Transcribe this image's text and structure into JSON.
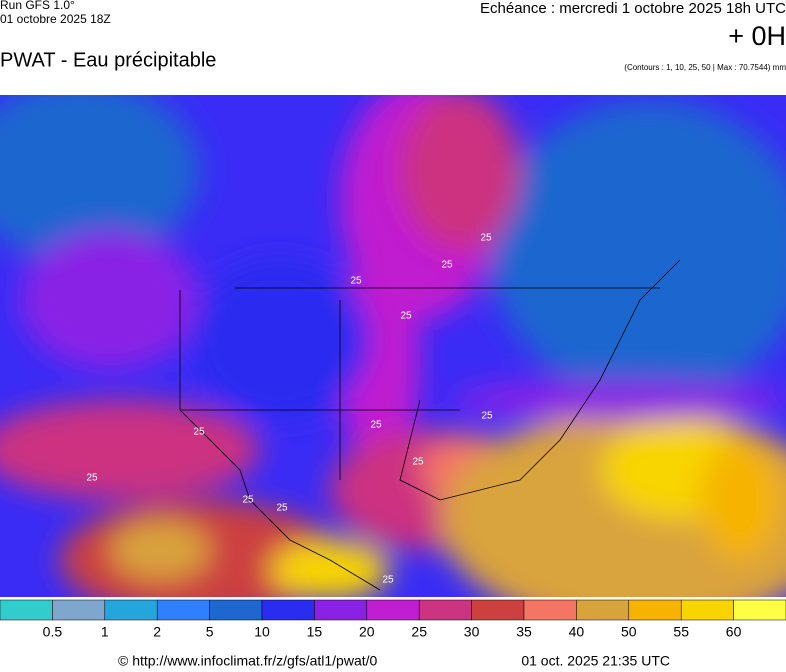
{
  "header": {
    "run": "Run GFS 1.0°",
    "run_date": "01 octobre 2025 18Z",
    "title": "PWAT - Eau précipitable",
    "echeance": "Echéance : mercredi 1 octobre 2025 18h UTC",
    "offset": "+ 0H",
    "contours": "(Contours : 1, 10, 25, 50 | Max : 70.7544) mm"
  },
  "map": {
    "contour_labels": [
      "25",
      "25",
      "25",
      "25",
      "25",
      "25",
      "25",
      "25",
      "25",
      "25",
      "25",
      "25"
    ]
  },
  "legend": {
    "colors": [
      "#33cccc",
      "#7fa6cc",
      "#24a6dc",
      "#2f80ff",
      "#1f66d0",
      "#2a2cf0",
      "#8a22e6",
      "#c01ed0",
      "#cc3380",
      "#cc4040",
      "#f57565",
      "#d9a33c",
      "#f6b400",
      "#f8d400",
      "#ffff44"
    ],
    "labels": [
      0.5,
      1,
      2,
      5,
      10,
      15,
      20,
      25,
      30,
      35,
      40,
      50,
      55,
      60
    ]
  },
  "footer": {
    "url": "© http://www.infoclimat.fr/z/gfs/atl1/pwat/0",
    "timestamp": "01 oct. 2025 21:35 UTC"
  }
}
